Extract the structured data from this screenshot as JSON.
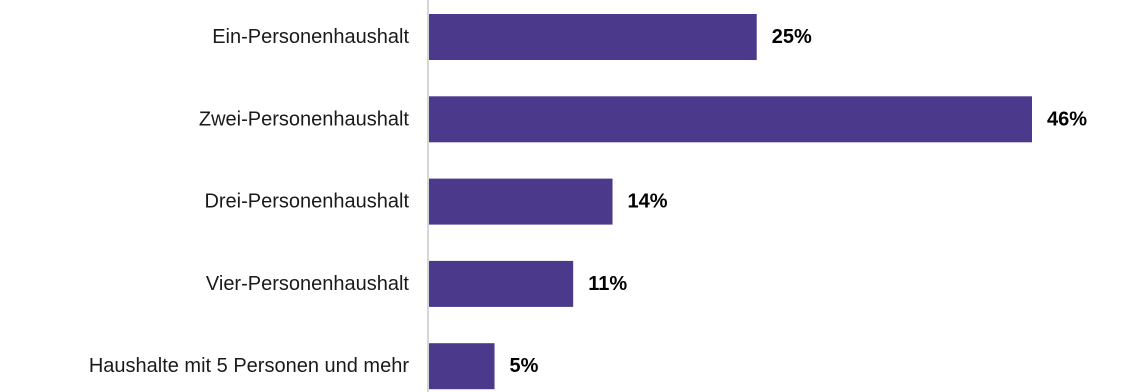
{
  "chart_data": {
    "type": "bar",
    "orientation": "horizontal",
    "categories": [
      "Ein-Personenhaushalt",
      "Zwei-Personenhaushalt",
      "Drei-Personenhaushalt",
      "Vier-Personenhaushalt",
      "Haushalte mit 5 Personen und mehr"
    ],
    "values": [
      25,
      46,
      14,
      11,
      5
    ],
    "value_labels": [
      "25%",
      "46%",
      "14%",
      "11%",
      "5%"
    ],
    "unit": "%",
    "xlim": [
      0,
      46
    ],
    "grid": false,
    "legend": "none",
    "colors": {
      "bar": "#4b3a8c",
      "axis": "#c8c8c8",
      "text": "#1a1a1a"
    }
  }
}
